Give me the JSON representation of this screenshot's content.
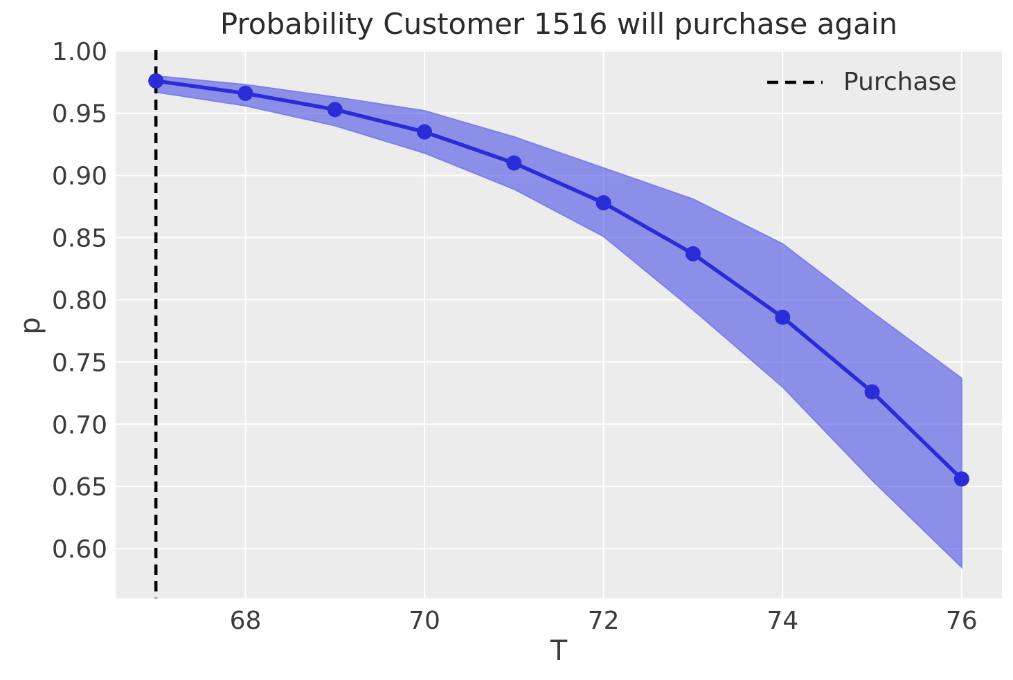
{
  "figure": {
    "title": "Probability Customer 1516 will purchase again",
    "xlabel": "T",
    "ylabel": "p",
    "legend": {
      "position": "upper right",
      "entries": [
        {
          "label": "Purchase",
          "style": "dashed-line",
          "color": "#000000"
        }
      ]
    }
  },
  "chart_data": {
    "type": "line",
    "title": "Probability Customer 1516 will purchase again",
    "xlabel": "T",
    "ylabel": "p",
    "xlim": [
      66.55,
      76.45
    ],
    "ylim": [
      0.56,
      1.001
    ],
    "grid": true,
    "x_ticks": {
      "values": [
        68,
        70,
        72,
        74,
        76
      ],
      "labels": [
        "68",
        "70",
        "72",
        "74",
        "76"
      ]
    },
    "y_ticks": {
      "values": [
        1.0,
        0.95,
        0.9,
        0.85,
        0.8,
        0.75,
        0.7,
        0.65,
        0.6
      ],
      "labels": [
        "1.00",
        "0.95",
        "0.90",
        "0.85",
        "0.80",
        "0.75",
        "0.70",
        "0.65",
        "0.60"
      ]
    },
    "series": [
      {
        "name": "p",
        "x": [
          67,
          68,
          69,
          70,
          71,
          72,
          73,
          74,
          75,
          76
        ],
        "y": [
          0.976,
          0.966,
          0.953,
          0.935,
          0.91,
          0.878,
          0.837,
          0.786,
          0.726,
          0.656
        ],
        "color": "#2a2cd8",
        "marker": "circle"
      }
    ],
    "band": {
      "x": [
        67,
        68,
        69,
        70,
        71,
        72,
        73,
        74,
        75,
        76
      ],
      "upper": [
        0.98,
        0.973,
        0.963,
        0.952,
        0.931,
        0.906,
        0.881,
        0.845,
        0.79,
        0.737
      ],
      "lower": [
        0.967,
        0.956,
        0.94,
        0.918,
        0.889,
        0.851,
        0.792,
        0.73,
        0.655,
        0.585
      ],
      "fill": "rgba(70,75,230,0.58)",
      "edge_color": "#7b80e8"
    },
    "vline": {
      "x": 67,
      "label": "Purchase",
      "color": "#000000",
      "style": "dashed"
    },
    "style": {
      "plot_background": "#ececec",
      "gridline_color": "#ffffff",
      "tick_label_color": "#3b3b3b",
      "title_color": "#2b2b2b",
      "legend_text_color": "#333333"
    }
  }
}
